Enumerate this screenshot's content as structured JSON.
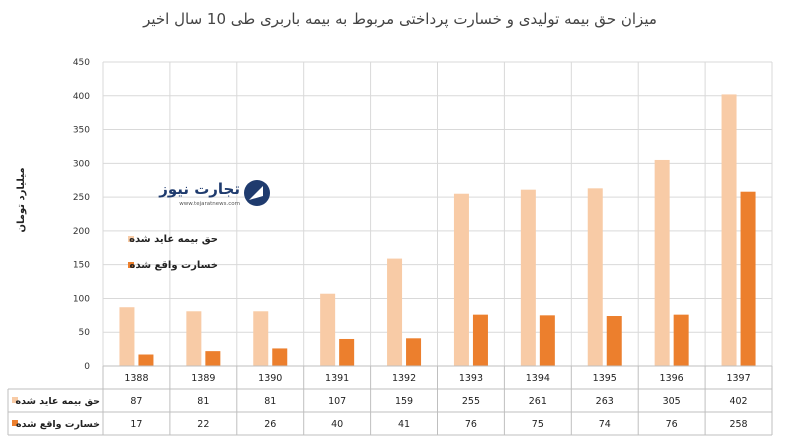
{
  "chart_data": {
    "type": "bar",
    "title": "میزان حق بیمه تولیدی و خسارت پرداختی مربوط به بیمه باربری طی 10 سال اخیر",
    "ylabel": "میلیارد تومان",
    "ylim": [
      0,
      450
    ],
    "yticks": [
      0,
      50,
      100,
      150,
      200,
      250,
      300,
      350,
      400,
      450
    ],
    "grid": true,
    "legend_position": "left",
    "categories": [
      "1388",
      "1389",
      "1390",
      "1391",
      "1392",
      "1393",
      "1394",
      "1395",
      "1396",
      "1397"
    ],
    "series": [
      {
        "name": "حق بیمه عاید شده",
        "color": "#f8cba6",
        "values": [
          87,
          81,
          81,
          107,
          159,
          255,
          261,
          263,
          305,
          402
        ]
      },
      {
        "name": "خسارت واقع شده",
        "color": "#ec7f2d",
        "values": [
          17,
          22,
          26,
          40,
          41,
          76,
          75,
          74,
          76,
          258
        ]
      }
    ]
  },
  "logo": {
    "name": "تجارت نیوز",
    "url": "www.tejaratnews.com",
    "icon": "tejaratnews-logo-icon"
  },
  "colors": {
    "grid": "#d9d9d9",
    "axis": "#bfbfbf",
    "table_border": "#bfbfbf",
    "logo_blue": "#1f3b6e",
    "logo_orange": "#e8742a"
  }
}
